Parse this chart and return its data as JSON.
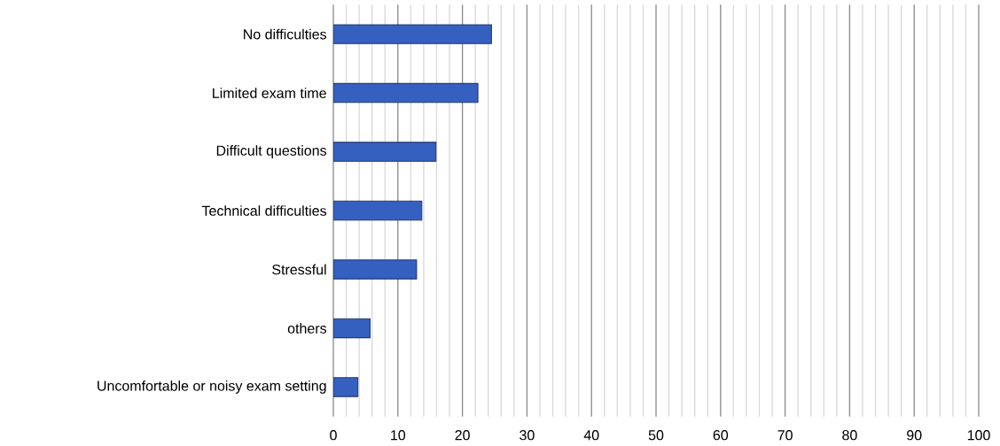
{
  "chart_data": {
    "type": "bar",
    "orientation": "horizontal",
    "categories": [
      "No difficulties",
      "Limited exam time",
      "Difficult questions",
      "Technical difficulties",
      "Stressful",
      "others",
      "Uncomfortable or noisy exam setting"
    ],
    "values": [
      24.5,
      22.4,
      15.9,
      13.7,
      12.9,
      5.7,
      3.8
    ],
    "color": "#3560c0",
    "xlim": [
      0,
      100
    ],
    "xticks": [
      0,
      {
        "value": 2,
        "label": null
      },
      {
        "value": 4,
        "label": null
      },
      {
        "value": 6,
        "label": null
      },
      {
        "value": 8,
        "label": null
      },
      10,
      {
        "value": 12,
        "label": null
      },
      {
        "value": 14,
        "label": null
      },
      {
        "value": 16,
        "label": null
      },
      {
        "value": 18,
        "label": null
      },
      20,
      {
        "value": 22,
        "label": null
      },
      {
        "value": 24,
        "label": null
      },
      {
        "value": 26,
        "label": null
      },
      {
        "value": 28,
        "label": null
      },
      30,
      {
        "value": 32,
        "label": null
      },
      {
        "value": 34,
        "label": null
      },
      {
        "value": 36,
        "label": null
      },
      {
        "value": 38,
        "label": null
      },
      40,
      {
        "value": 42,
        "label": null
      },
      {
        "value": 44,
        "label": null
      },
      {
        "value": 46,
        "label": null
      },
      {
        "value": 48,
        "label": null
      },
      50,
      {
        "value": 52,
        "label": null
      },
      {
        "value": 54,
        "label": null
      },
      {
        "value": 56,
        "label": null
      },
      {
        "value": 58,
        "label": null
      },
      60,
      {
        "value": 62,
        "label": null
      },
      {
        "value": 64,
        "label": null
      },
      {
        "value": 66,
        "label": null
      },
      {
        "value": 68,
        "label": null
      },
      70,
      {
        "value": 72,
        "label": null
      },
      {
        "value": 74,
        "label": null
      },
      {
        "value": 76,
        "label": null
      },
      {
        "value": 78,
        "label": null
      },
      80,
      {
        "value": 82,
        "label": null
      },
      {
        "value": 84,
        "label": null
      },
      {
        "value": 86,
        "label": null
      },
      {
        "value": 88,
        "label": null
      },
      90,
      {
        "value": 92,
        "label": null
      },
      {
        "value": 94,
        "label": null
      },
      {
        "value": 96,
        "label": null
      },
      {
        "value": 98,
        "label": null
      },
      100
    ],
    "grid": "x"
  }
}
